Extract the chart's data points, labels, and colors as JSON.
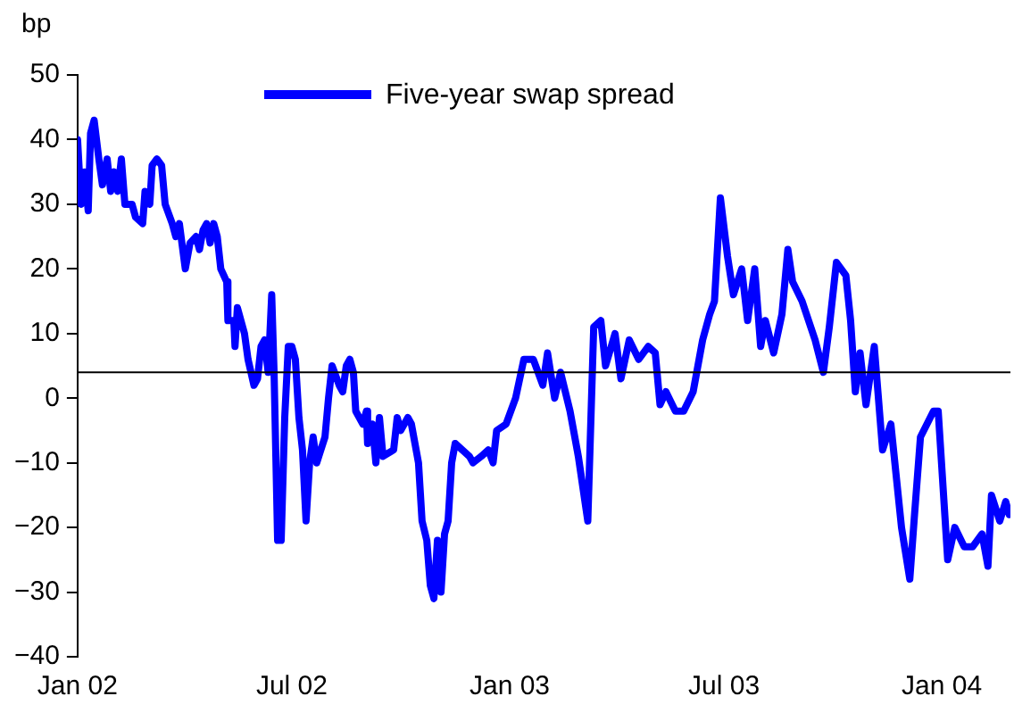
{
  "chart_data": {
    "type": "line",
    "ylabel": "bp",
    "legend": "top",
    "grid": false,
    "marker": "none",
    "line_style": "solid",
    "xlim": [
      "2002-01-01",
      "2004-02-28"
    ],
    "xticks": [
      {
        "value": "2002-01-01",
        "label": "Jan 02"
      },
      {
        "value": "2002-07-01",
        "label": "Jul 02"
      },
      {
        "value": "2003-01-01",
        "label": "Jan 03"
      },
      {
        "value": "2003-07-01",
        "label": "Jul 03"
      },
      {
        "value": "2004-01-01",
        "label": "Jan 04"
      }
    ],
    "ylim": [
      -40,
      50
    ],
    "yticks": [
      -40,
      -30,
      -20,
      -10,
      0,
      10,
      20,
      30,
      40,
      50
    ],
    "ref_lines": [
      {
        "axis": "y",
        "value": 4,
        "color": "#000000"
      }
    ],
    "x": [
      "2002-01-01",
      "2002-01-04",
      "2002-01-07",
      "2002-01-10",
      "2002-01-12",
      "2002-01-15",
      "2002-01-19",
      "2002-01-22",
      "2002-01-26",
      "2002-01-29",
      "2002-02-01",
      "2002-02-04",
      "2002-02-07",
      "2002-02-10",
      "2002-02-16",
      "2002-02-19",
      "2002-02-25",
      "2002-02-27",
      "2002-03-03",
      "2002-03-05",
      "2002-03-09",
      "2002-03-13",
      "2002-03-16",
      "2002-03-22",
      "2002-03-25",
      "2002-03-28",
      "2002-04-02",
      "2002-04-06",
      "2002-04-11",
      "2002-04-14",
      "2002-04-17",
      "2002-04-20",
      "2002-04-23",
      "2002-04-26",
      "2002-04-29",
      "2002-05-02",
      "2002-05-07",
      "2002-05-08",
      "2002-05-13",
      "2002-05-14",
      "2002-05-16",
      "2002-05-19",
      "2002-05-22",
      "2002-05-25",
      "2002-05-30",
      "2002-06-02",
      "2002-06-05",
      "2002-06-08",
      "2002-06-11",
      "2002-06-14",
      "2002-06-16",
      "2002-06-19",
      "2002-06-22",
      "2002-06-25",
      "2002-06-28",
      "2002-07-01",
      "2002-07-04",
      "2002-07-07",
      "2002-07-10",
      "2002-07-13",
      "2002-07-16",
      "2002-07-19",
      "2002-07-22",
      "2002-07-29",
      "2002-08-01",
      "2002-08-04",
      "2002-08-10",
      "2002-08-13",
      "2002-08-16",
      "2002-08-19",
      "2002-08-22",
      "2002-08-24",
      "2002-08-30",
      "2002-09-02",
      "2002-09-03",
      "2002-09-07",
      "2002-09-10",
      "2002-09-13",
      "2002-09-16",
      "2002-09-25",
      "2002-09-28",
      "2002-10-01",
      "2002-10-07",
      "2002-10-10",
      "2002-10-13",
      "2002-10-16",
      "2002-10-19",
      "2002-10-23",
      "2002-10-26",
      "2002-10-29",
      "2002-11-01",
      "2002-11-04",
      "2002-11-07",
      "2002-11-10",
      "2002-11-13",
      "2002-11-16",
      "2002-11-22",
      "2002-11-28",
      "2002-12-01",
      "2002-12-08",
      "2002-12-14",
      "2002-12-18",
      "2002-12-21",
      "2002-12-29",
      "2003-01-06",
      "2003-01-13",
      "2003-01-21",
      "2003-01-29",
      "2003-02-02",
      "2003-02-08",
      "2003-02-13",
      "2003-02-21",
      "2003-02-28",
      "2003-03-08",
      "2003-03-13",
      "2003-03-19",
      "2003-03-23",
      "2003-03-31",
      "2003-04-05",
      "2003-04-12",
      "2003-04-20",
      "2003-04-28",
      "2003-05-04",
      "2003-05-08",
      "2003-05-13",
      "2003-05-21",
      "2003-05-28",
      "2003-06-05",
      "2003-06-13",
      "2003-06-19",
      "2003-06-23",
      "2003-06-28",
      "2003-07-04",
      "2003-07-09",
      "2003-07-16",
      "2003-07-21",
      "2003-07-27",
      "2003-08-01",
      "2003-08-05",
      "2003-08-12",
      "2003-08-19",
      "2003-08-24",
      "2003-08-28",
      "2003-09-05",
      "2003-09-16",
      "2003-09-23",
      "2003-09-28",
      "2003-10-04",
      "2003-10-12",
      "2003-10-16",
      "2003-10-20",
      "2003-10-24",
      "2003-10-29",
      "2003-11-05",
      "2003-11-12",
      "2003-11-19",
      "2003-11-28",
      "2003-12-05",
      "2003-12-09",
      "2003-12-14",
      "2003-12-25",
      "2003-12-29",
      "2004-01-06",
      "2004-01-12",
      "2004-01-20",
      "2004-01-27",
      "2004-02-04",
      "2004-02-09",
      "2004-02-12",
      "2004-02-19",
      "2004-02-24",
      "2004-02-27"
    ],
    "series": [
      {
        "name": "Five-year swap spread",
        "color": "#0000ff",
        "values": [
          40,
          30,
          35,
          29,
          41,
          43,
          37,
          33,
          37,
          32,
          35,
          32,
          37,
          30,
          30,
          28,
          27,
          32,
          30,
          36,
          37,
          36,
          30,
          27,
          25,
          27,
          20,
          24,
          25,
          23,
          26,
          27,
          24,
          27,
          25,
          20,
          18,
          12,
          12,
          8,
          14,
          12,
          10,
          6,
          2,
          3,
          8,
          9,
          4,
          16,
          4,
          -22,
          -22,
          -3,
          8,
          8,
          6,
          -3,
          -8,
          -19,
          -10,
          -6,
          -10,
          -6,
          0,
          5,
          2,
          1,
          5,
          6,
          4,
          -2,
          -4,
          -2,
          -7,
          -4,
          -10,
          -3,
          -9,
          -8,
          -3,
          -5,
          -3,
          -4,
          -7,
          -10,
          -19,
          -22,
          -29,
          -31,
          -22,
          -30,
          -21,
          -19,
          -10,
          -7,
          -8,
          -9,
          -10,
          -9,
          -8,
          -10,
          -5,
          -4,
          0,
          6,
          6,
          2,
          7,
          0,
          4,
          -2,
          -9,
          -19,
          11,
          12,
          5,
          10,
          3,
          9,
          6,
          8,
          7,
          -1,
          1,
          -2,
          -2,
          1,
          9,
          13,
          15,
          31,
          22,
          16,
          20,
          12,
          20,
          8,
          12,
          7,
          13,
          23,
          18,
          15,
          9,
          4,
          11,
          21,
          19,
          12,
          1,
          7,
          -1,
          8,
          -8,
          -4,
          -20,
          -28,
          -18,
          -6,
          -2,
          -2,
          -25,
          -20,
          -23,
          -23,
          -21,
          -26,
          -15,
          -19,
          -16,
          -18
        ]
      }
    ]
  }
}
